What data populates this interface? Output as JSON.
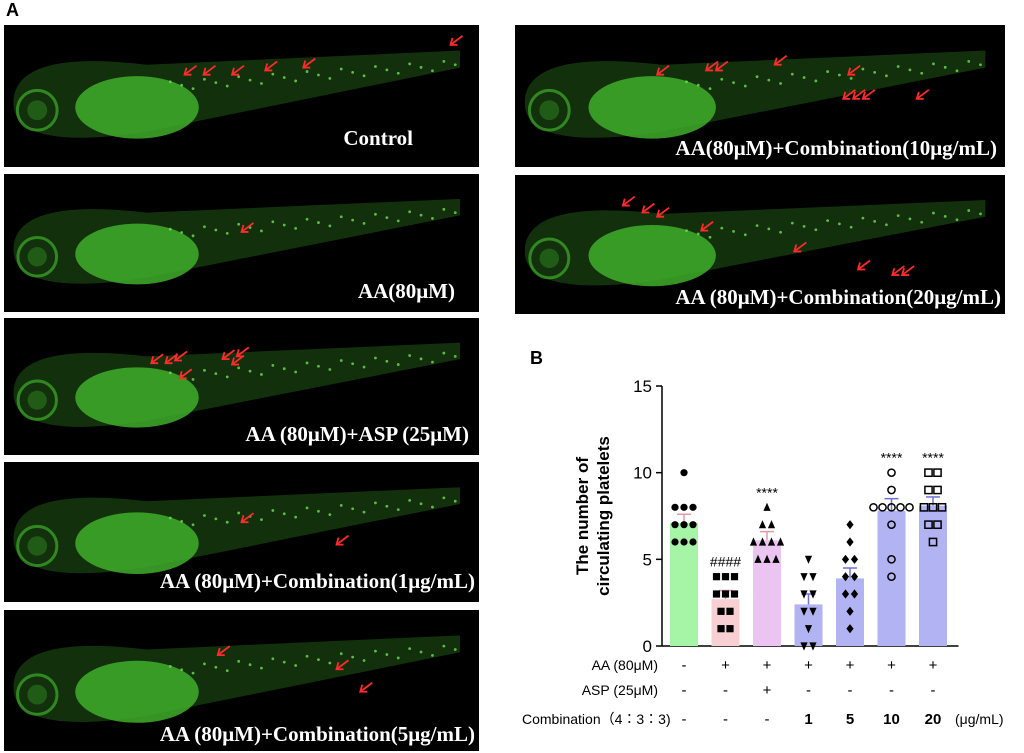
{
  "panel_a_letter": "A",
  "panel_b_letter": "B",
  "colors": {
    "fluorescence": "#3fae2a",
    "arrow": "#ff2a2a",
    "bar_control": "#a6f5a6",
    "bar_model": "#f8cfd2",
    "bar_asp": "#ecc4f2",
    "bar_combination": "#b2b3f2"
  },
  "images": [
    {
      "label": "Control"
    },
    {
      "label": "AA(80μM)"
    },
    {
      "label": "AA (80μM)+ASP (25μM)"
    },
    {
      "label": "AA (80μM)+Combination(1μg/mL)"
    },
    {
      "label": "AA (80μM)+Combination(5μg/mL)"
    },
    {
      "label": "AA(80μM)+Combination(10μg/mL)"
    },
    {
      "label": "AA (80μM)+Combination(20μg/mL)"
    }
  ],
  "chart_data": {
    "type": "bar",
    "ylabel": "The number of circulating platelets",
    "ylim": [
      0,
      15
    ],
    "yticks": [
      "0",
      "5",
      "10",
      "15"
    ],
    "groups": [
      {
        "mean": 7.1,
        "sem": 0.5,
        "sig": "",
        "marker": "dot-filled",
        "points": [
          10,
          8,
          8,
          7,
          7,
          6,
          6,
          6,
          8,
          7
        ]
      },
      {
        "mean": 2.7,
        "sem": 0.5,
        "sig": "####",
        "marker": "square-filled",
        "points": [
          4,
          4,
          4,
          3,
          3,
          3,
          2,
          1,
          1,
          2
        ]
      },
      {
        "mean": 6.1,
        "sem": 0.5,
        "sig": "****",
        "marker": "triangle-up-filled",
        "points": [
          8,
          7,
          7,
          6,
          6,
          6,
          5,
          5,
          6,
          5
        ]
      },
      {
        "mean": 2.4,
        "sem": 0.6,
        "sig": "",
        "marker": "triangle-down-filled",
        "points": [
          5,
          4,
          4,
          3,
          3,
          2,
          1,
          0,
          0,
          2
        ]
      },
      {
        "mean": 3.9,
        "sem": 0.6,
        "sig": "",
        "marker": "diamond-filled",
        "points": [
          7,
          6,
          5,
          5,
          4,
          4,
          3,
          3,
          2,
          1
        ]
      },
      {
        "mean": 7.8,
        "sem": 0.7,
        "sig": "****",
        "marker": "circle-open",
        "points": [
          10,
          9,
          8,
          8,
          8,
          8,
          8,
          7,
          5,
          4
        ]
      },
      {
        "mean": 8.1,
        "sem": 0.5,
        "sig": "****",
        "marker": "square-open",
        "points": [
          10,
          10,
          9,
          9,
          8,
          8,
          8,
          7,
          7,
          6
        ]
      }
    ],
    "treatment_rows": [
      {
        "label": "AA (80μM)",
        "values": [
          "-",
          "+",
          "+",
          "+",
          "+",
          "+",
          "+"
        ],
        "unit": ""
      },
      {
        "label": "ASP (25μM)",
        "values": [
          "-",
          "-",
          "+",
          "-",
          "-",
          "-",
          "-"
        ],
        "unit": ""
      },
      {
        "label": "Combination（4∶3∶3)",
        "values": [
          "-",
          "-",
          "-",
          "1",
          "5",
          "10",
          "20"
        ],
        "unit": "(μg/mL)"
      }
    ]
  }
}
